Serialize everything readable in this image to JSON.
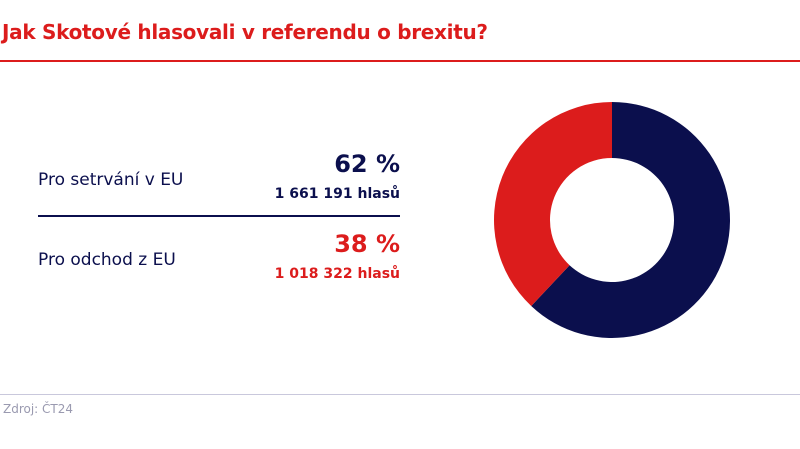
{
  "title": "Jak Skotové hlasovali v referendu o brexitu?",
  "source": "Zdroj: ČT24",
  "chart_data": {
    "type": "pie",
    "donut": true,
    "title": "Jak Skotové hlasovali v referendu o brexitu?",
    "slices": [
      {
        "label": "Pro setrvání v EU",
        "percent_label": "62 %",
        "votes_label": "1 661 191 hlasů",
        "value": 62,
        "votes": 1661191,
        "color": "#0b0f4d"
      },
      {
        "label": "Pro odchod z EU",
        "percent_label": "38 %",
        "votes_label": "1 018 322 hlasů",
        "value": 38,
        "votes": 1018322,
        "color": "#dc1c1c"
      }
    ]
  }
}
